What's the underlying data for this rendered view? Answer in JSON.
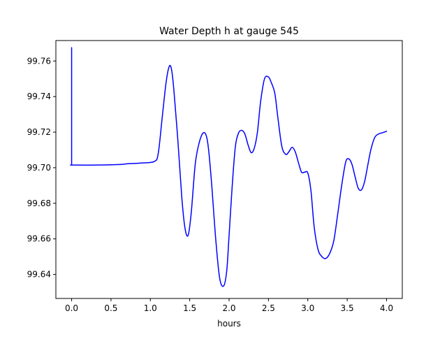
{
  "chart_data": {
    "type": "line",
    "title": "Water Depth h at gauge 545",
    "xlabel": "hours",
    "ylabel": "",
    "xlim": [
      -0.2,
      4.2
    ],
    "ylim": [
      99.6265,
      99.7715
    ],
    "xticks": [
      0.0,
      0.5,
      1.0,
      1.5,
      2.0,
      2.5,
      3.0,
      3.5,
      4.0
    ],
    "xtick_labels": [
      "0.0",
      "0.5",
      "1.0",
      "1.5",
      "2.0",
      "2.5",
      "3.0",
      "3.5",
      "4.0"
    ],
    "yticks": [
      99.64,
      99.66,
      99.68,
      99.7,
      99.72,
      99.74,
      99.76
    ],
    "ytick_labels": [
      "99.64",
      "99.66",
      "99.68",
      "99.70",
      "99.72",
      "99.74",
      "99.76"
    ],
    "grid": false,
    "series": [
      {
        "color": "#0000ff",
        "x": [
          0.0,
          0.0,
          0.01,
          0.3,
          0.6,
          0.7,
          0.9,
          1.05,
          1.1,
          1.15,
          1.2,
          1.24,
          1.27,
          1.3,
          1.35,
          1.4,
          1.44,
          1.48,
          1.52,
          1.57,
          1.62,
          1.67,
          1.71,
          1.74,
          1.78,
          1.83,
          1.88,
          1.93,
          1.97,
          2.0,
          2.04,
          2.08,
          2.12,
          2.16,
          2.2,
          2.24,
          2.28,
          2.32,
          2.36,
          2.4,
          2.45,
          2.5,
          2.53,
          2.58,
          2.62,
          2.67,
          2.72,
          2.76,
          2.8,
          2.84,
          2.88,
          2.92,
          2.96,
          3.0,
          3.04,
          3.08,
          3.13,
          3.18,
          3.23,
          3.28,
          3.33,
          3.38,
          3.43,
          3.48,
          3.52,
          3.56,
          3.6,
          3.64,
          3.68,
          3.72,
          3.76,
          3.8,
          3.85,
          3.9,
          3.95,
          4.0
        ],
        "y": [
          99.7675,
          99.7015,
          99.7015,
          99.7015,
          99.7018,
          99.7022,
          99.7027,
          99.7035,
          99.708,
          99.728,
          99.748,
          99.757,
          99.755,
          99.743,
          99.715,
          99.683,
          99.666,
          99.662,
          99.675,
          99.702,
          99.714,
          99.7195,
          99.718,
          99.71,
          99.69,
          99.66,
          99.638,
          99.6335,
          99.642,
          99.662,
          99.69,
          99.712,
          99.7195,
          99.721,
          99.719,
          99.713,
          99.7085,
          99.711,
          99.72,
          99.737,
          99.75,
          99.751,
          99.7485,
          99.742,
          99.728,
          99.712,
          99.7075,
          99.709,
          99.7115,
          99.709,
          99.703,
          99.6975,
          99.6975,
          99.697,
          99.687,
          99.667,
          99.654,
          99.65,
          99.649,
          99.652,
          99.659,
          99.674,
          99.69,
          99.703,
          99.705,
          99.702,
          99.695,
          99.6885,
          99.6875,
          99.692,
          99.701,
          99.71,
          99.717,
          99.719,
          99.7197,
          99.7205
        ]
      }
    ]
  }
}
